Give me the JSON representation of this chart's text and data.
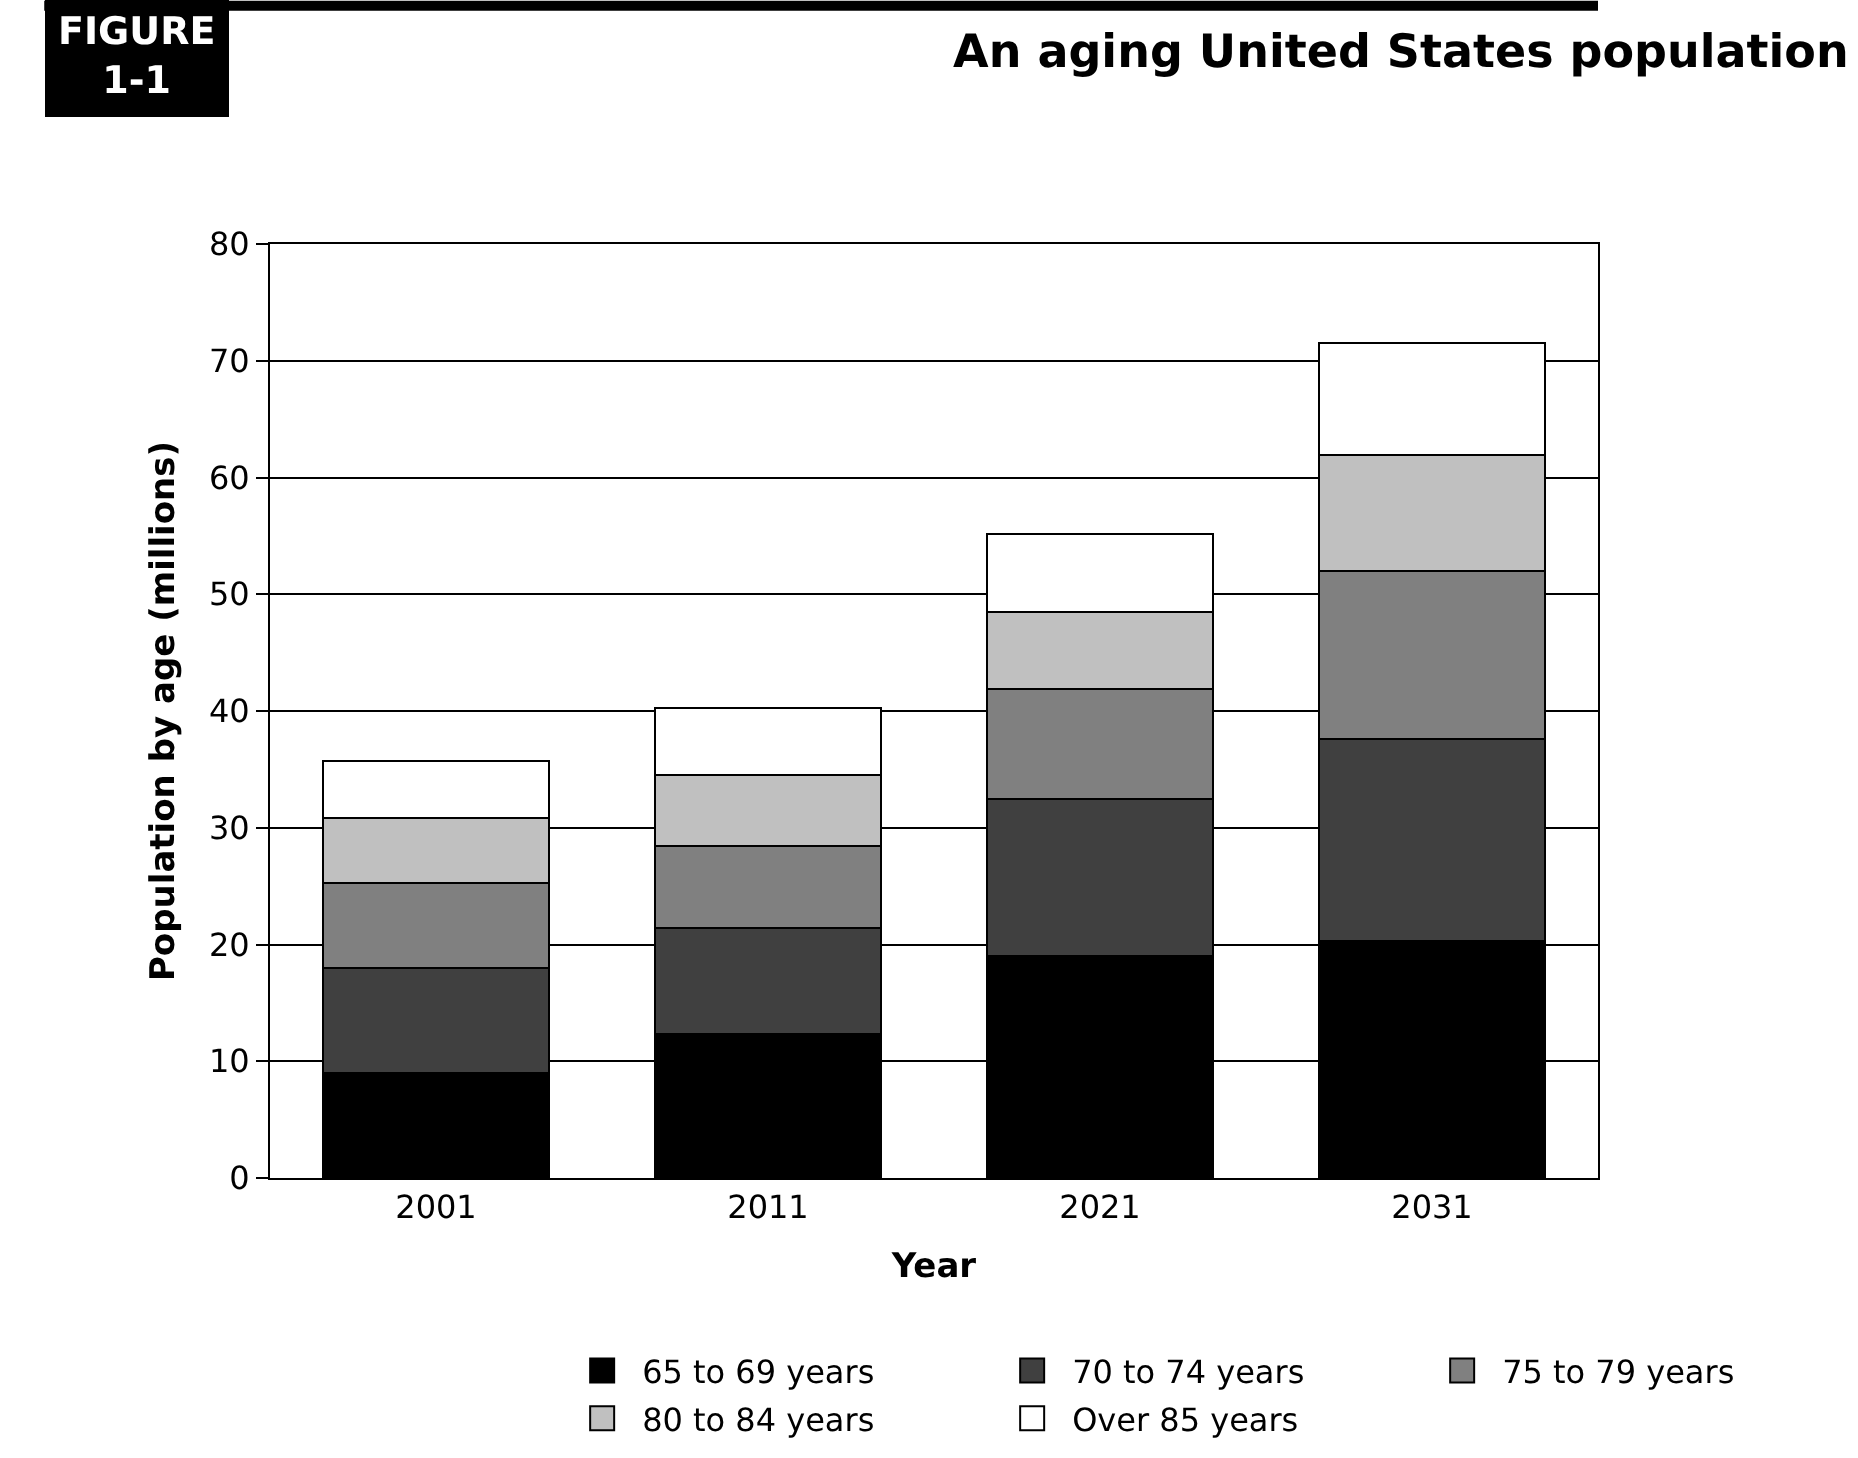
{
  "chart_data": {
    "type": "bar",
    "title": "An aging United States population",
    "xlabel": "Year",
    "ylabel": "Population by age (millions)",
    "annotations": [
      "FIGURE\n1-1"
    ],
    "categories": [
      "2001",
      "2011",
      "2021",
      "2031"
    ],
    "stacked": true,
    "ylim": [
      0,
      80
    ],
    "yticks": [
      0,
      10,
      20,
      30,
      40,
      50,
      60,
      70,
      80
    ],
    "grid": "y",
    "legend": "bottom",
    "series": [
      {
        "name": "65 to 69 years",
        "color": "#000000",
        "values": [
          9,
          12.3,
          19,
          20.3
        ]
      },
      {
        "name": "70 to 74 years",
        "color": "#404040",
        "values": [
          9,
          9.1,
          13.5,
          17.3
        ]
      },
      {
        "name": "75 to 79 years",
        "color": "#808080",
        "values": [
          7.3,
          7,
          9.4,
          14.4
        ]
      },
      {
        "name": "80 to 84 years",
        "color": "#c0c0c0",
        "values": [
          5.5,
          6.1,
          6.6,
          9.9
        ]
      },
      {
        "name": "Over 85 years",
        "color": "#ffffff",
        "values": [
          4.9,
          5.8,
          6.7,
          9.6
        ]
      }
    ]
  }
}
